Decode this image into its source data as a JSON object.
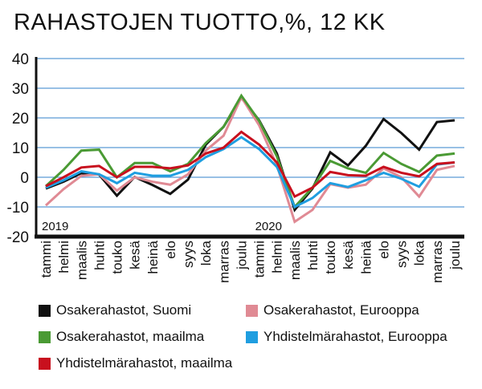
{
  "chart_data": {
    "type": "line",
    "title": "RAHASTOJEN TUOTTO,%, 12 KK",
    "xlabel": "",
    "ylabel": "",
    "ylim": [
      -20,
      40
    ],
    "yticks": [
      40,
      30,
      20,
      10,
      0,
      -10,
      -20
    ],
    "grid": true,
    "legend_placement": "bottom",
    "year_labels": [
      {
        "label": "2019",
        "at": 0
      },
      {
        "label": "2020",
        "at": 12
      }
    ],
    "categories": [
      "tammi",
      "helmi",
      "maalis",
      "huhti",
      "touko",
      "kesä",
      "heinä",
      "elo",
      "syys",
      "loka",
      "marras",
      "joulu",
      "tammi",
      "helmi",
      "maalis",
      "huhti",
      "touko",
      "kesä",
      "heinä",
      "elo",
      "syys",
      "loka",
      "marras",
      "joulu"
    ],
    "series": [
      {
        "name": "Osakerahastot, Suomi",
        "color": "#111111",
        "values": [
          -3.8,
          -1.5,
          1.4,
          0.9,
          -6.2,
          0.1,
          -2.6,
          -5.6,
          -0.8,
          11,
          17,
          26.8,
          19.2,
          8,
          -11,
          -3.8,
          8.4,
          4,
          10.6,
          19.6,
          14.9,
          9.3,
          18.6,
          19.2
        ]
      },
      {
        "name": "Osakerahastot, Eurooppa",
        "color": "#e08a94",
        "values": [
          -9.5,
          -4,
          0.5,
          1,
          -4.5,
          0,
          -1.5,
          -2.5,
          1,
          9,
          14,
          27,
          17.5,
          4,
          -15,
          -11,
          -2.3,
          -3.5,
          -2.5,
          3,
          0,
          -6.5,
          2.5,
          3.8
        ]
      },
      {
        "name": "Osakerahastot, maailma",
        "color": "#4a9a34",
        "values": [
          -3,
          2.5,
          9,
          9.3,
          0,
          4.8,
          4.8,
          2,
          4.5,
          11.5,
          17,
          27.5,
          19,
          7,
          -10,
          -3.5,
          5.5,
          3,
          1.5,
          8.2,
          4.5,
          1.8,
          7.3,
          8
        ]
      },
      {
        "name": "Yhdistelmärahastot, Eurooppa",
        "color": "#1f9ee0",
        "values": [
          -3.5,
          -1,
          2,
          1,
          -2,
          1.5,
          0.5,
          0.5,
          2.5,
          6.8,
          9.5,
          13.5,
          9.5,
          3.5,
          -10,
          -7,
          -2,
          -3.3,
          -1,
          1.5,
          -0.5,
          -3.2,
          4.3,
          5
        ]
      },
      {
        "name": "Yhdistelmärahastot, maailma",
        "color": "#c8101e",
        "values": [
          -3,
          0,
          3.3,
          3.8,
          0,
          3.5,
          3.5,
          3,
          4,
          8,
          10,
          15.3,
          11,
          5,
          -6.5,
          -3.5,
          1.8,
          0.7,
          0.5,
          3.5,
          1.5,
          0.3,
          4.5,
          5
        ]
      }
    ]
  }
}
